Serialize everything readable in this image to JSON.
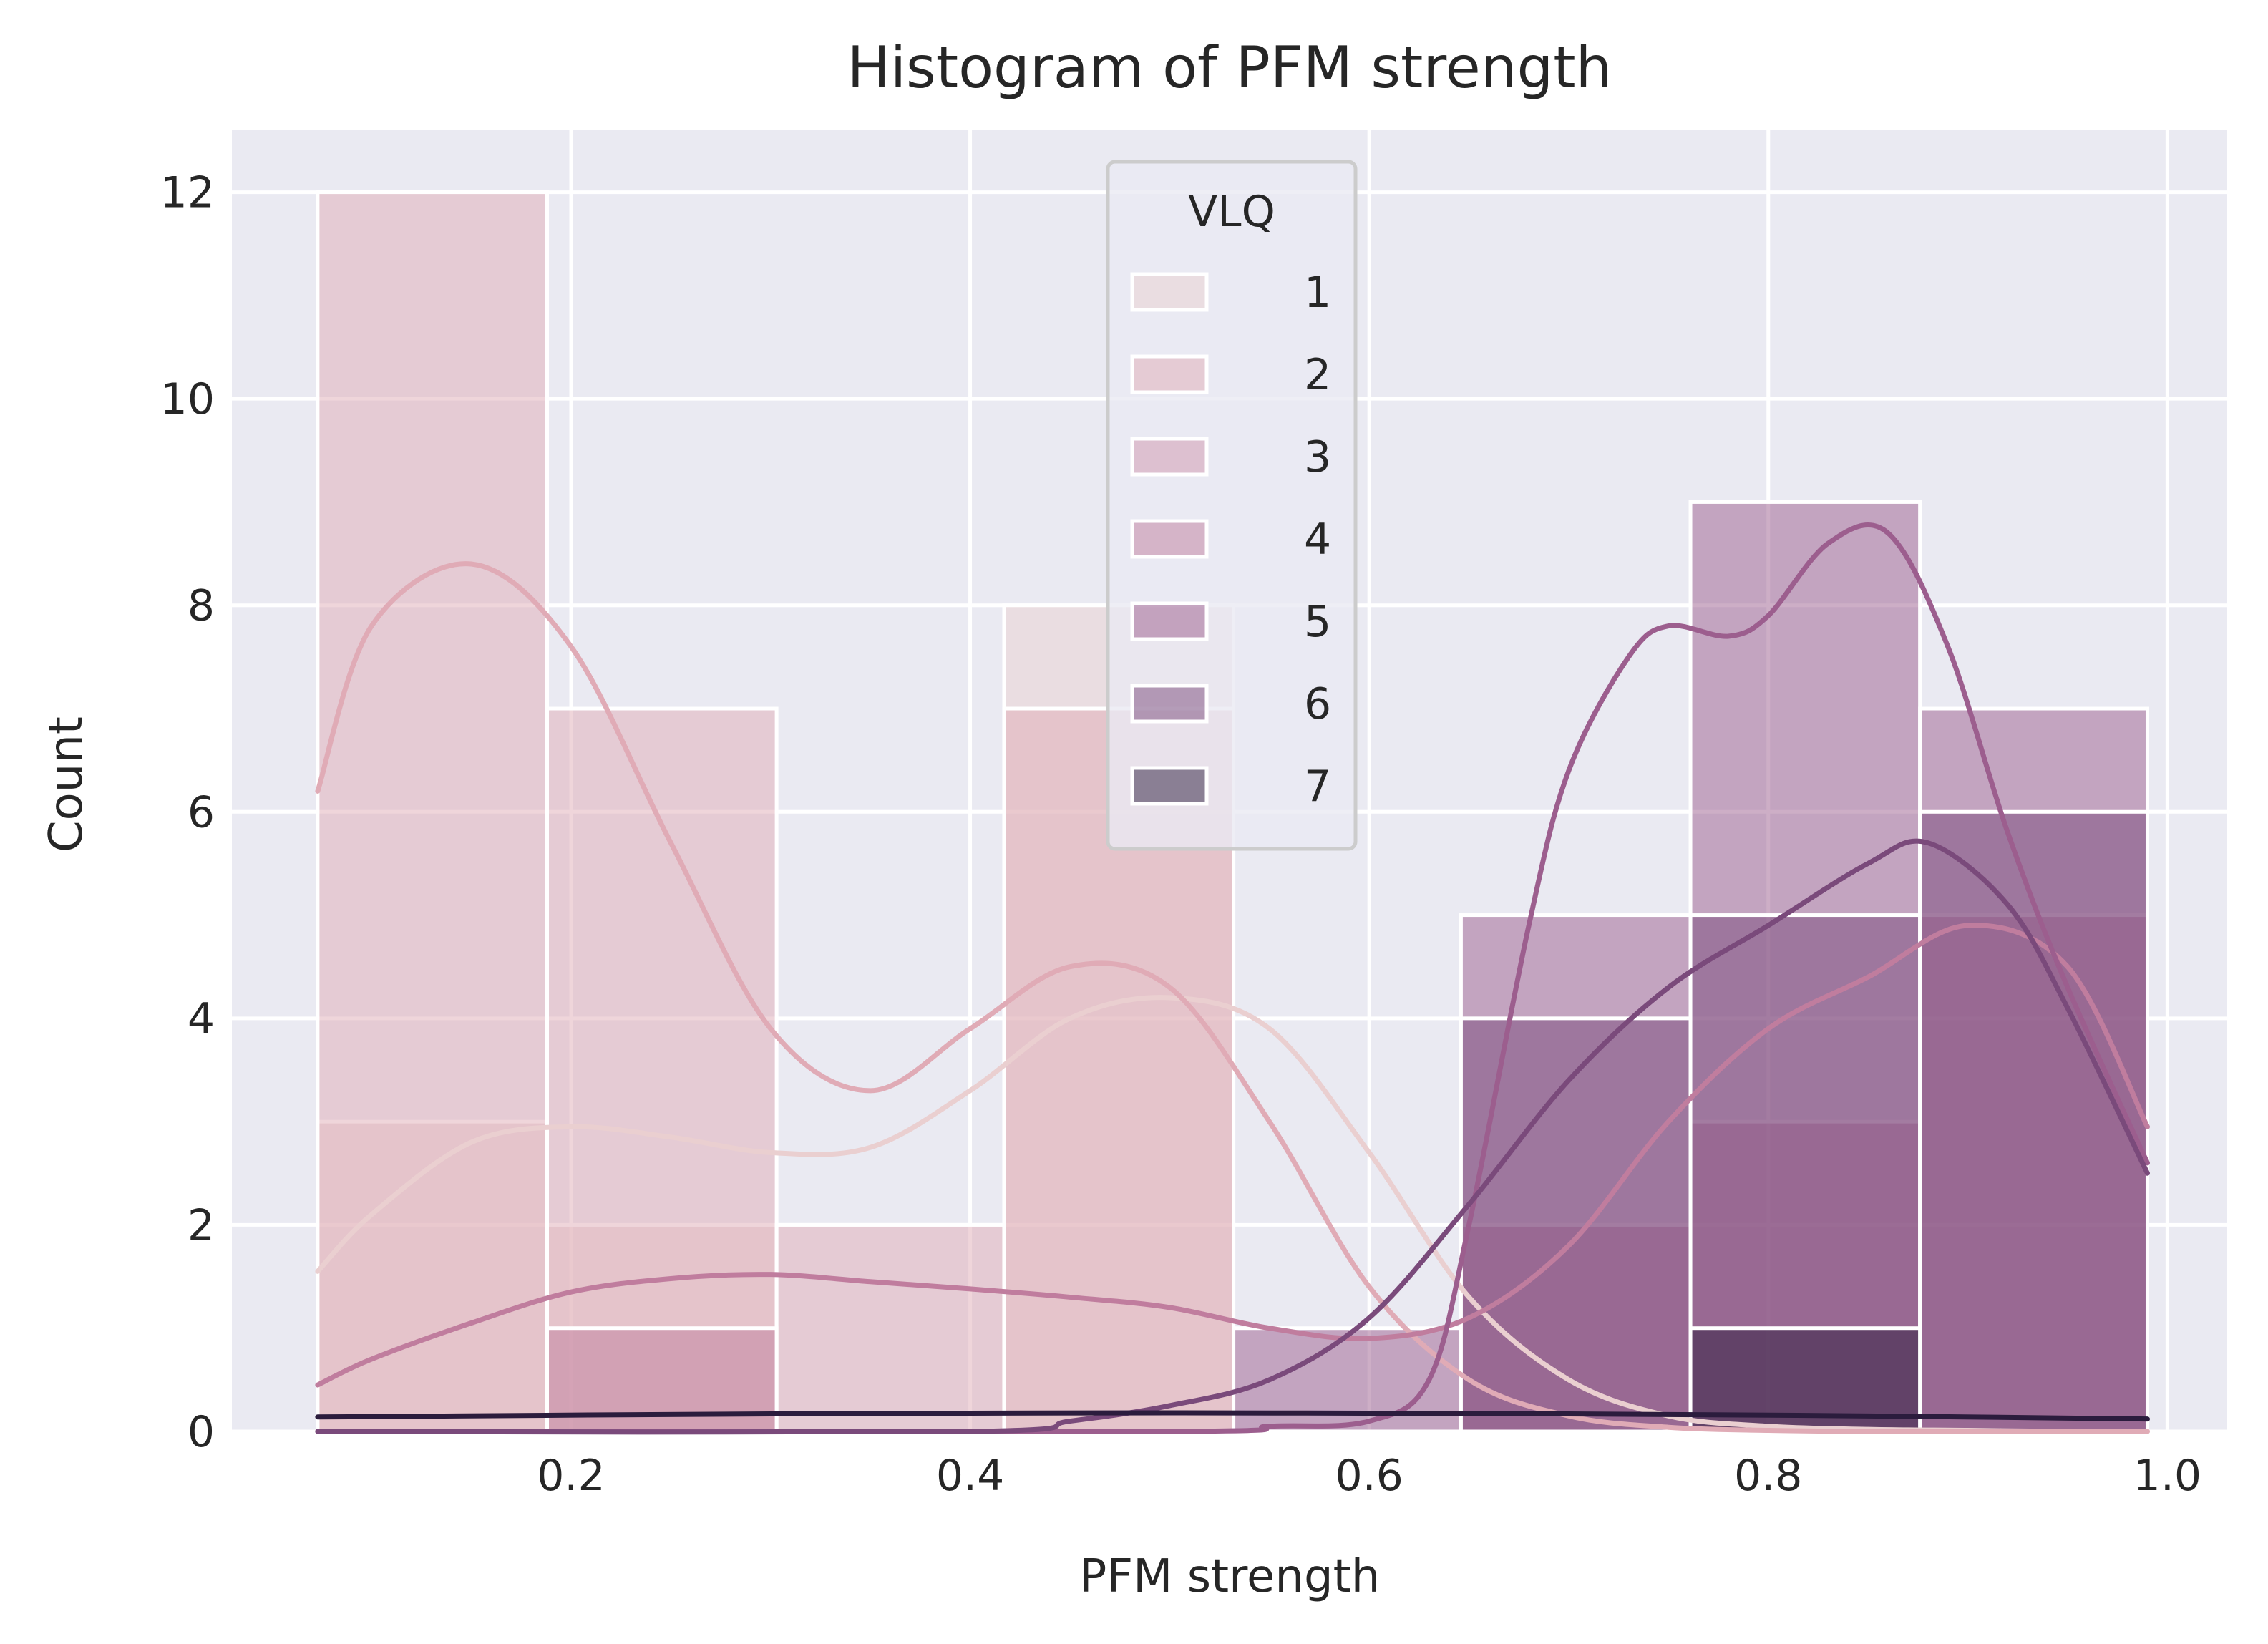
{
  "chart_data": {
    "type": "bar",
    "title": "Histogram of PFM strength",
    "xlabel": "PFM strength",
    "ylabel": "Count",
    "xlim": [
      0.03,
      1.03
    ],
    "ylim": [
      0,
      12.6
    ],
    "xticks": [
      0.2,
      0.4,
      0.6,
      0.8,
      1.0
    ],
    "xtick_labels": [
      "0.2",
      "0.4",
      "0.6",
      "0.8",
      "1.0"
    ],
    "yticks": [
      0,
      2,
      4,
      6,
      8,
      10,
      12
    ],
    "ytick_labels": [
      "0",
      "2",
      "4",
      "6",
      "8",
      "10",
      "12"
    ],
    "grid": true,
    "legend": {
      "title": "VLQ",
      "position": "top-center"
    },
    "bin_edges": [
      0.073,
      0.188,
      0.303,
      0.417,
      0.532,
      0.646,
      0.761,
      0.876,
      0.99
    ],
    "series": [
      {
        "name": "1",
        "color": "#eacfd0",
        "counts": [
          3,
          2,
          0,
          8,
          0,
          0,
          0,
          0
        ],
        "kde_x": [
          0.073,
          0.1,
          0.15,
          0.2,
          0.25,
          0.3,
          0.35,
          0.4,
          0.45,
          0.5,
          0.55,
          0.6,
          0.65,
          0.7,
          0.75,
          0.8,
          0.85,
          0.9,
          0.95,
          0.99
        ],
        "kde_y": [
          1.55,
          2.1,
          2.8,
          2.95,
          2.85,
          2.7,
          2.75,
          3.3,
          4.0,
          4.2,
          3.9,
          2.7,
          1.3,
          0.5,
          0.15,
          0.05,
          0.02,
          0.01,
          0.0,
          0.0
        ]
      },
      {
        "name": "2",
        "color": "#e0abb6",
        "counts": [
          12,
          7,
          2,
          7,
          0,
          0,
          0,
          0
        ],
        "kde_x": [
          0.073,
          0.1,
          0.15,
          0.2,
          0.25,
          0.3,
          0.35,
          0.4,
          0.45,
          0.5,
          0.55,
          0.6,
          0.65,
          0.7,
          0.75,
          0.8,
          0.85,
          0.9,
          0.95,
          0.99
        ],
        "kde_y": [
          6.2,
          7.8,
          8.4,
          7.6,
          5.7,
          3.9,
          3.3,
          3.9,
          4.5,
          4.3,
          3.0,
          1.4,
          0.5,
          0.15,
          0.04,
          0.01,
          0.0,
          0.0,
          0.0,
          0.0
        ]
      },
      {
        "name": "3",
        "color": "#cf95ad",
        "counts": [
          0,
          0,
          0,
          0,
          0,
          0,
          0,
          0
        ],
        "kde_x": [],
        "kde_y": []
      },
      {
        "name": "4",
        "color": "#c07d9e",
        "counts": [
          0,
          1,
          0,
          0,
          0,
          2,
          3,
          5
        ],
        "kde_x": [
          0.073,
          0.1,
          0.15,
          0.2,
          0.25,
          0.3,
          0.35,
          0.4,
          0.45,
          0.5,
          0.55,
          0.6,
          0.65,
          0.7,
          0.75,
          0.8,
          0.85,
          0.9,
          0.95,
          0.99
        ],
        "kde_y": [
          0.45,
          0.7,
          1.05,
          1.35,
          1.48,
          1.52,
          1.45,
          1.38,
          1.3,
          1.2,
          1.0,
          0.9,
          1.1,
          1.8,
          3.0,
          3.9,
          4.4,
          4.9,
          4.5,
          2.95
        ]
      },
      {
        "name": "5",
        "color": "#9c5e8e",
        "counts": [
          0,
          0,
          0,
          0,
          1,
          5,
          9,
          7
        ],
        "kde_x": [
          0.073,
          0.5,
          0.55,
          0.6,
          0.63,
          0.65,
          0.68,
          0.7,
          0.73,
          0.75,
          0.78,
          0.8,
          0.83,
          0.86,
          0.89,
          0.92,
          0.95,
          0.99
        ],
        "kde_y": [
          0.0,
          0.0,
          0.05,
          0.1,
          0.5,
          2.0,
          4.9,
          6.4,
          7.5,
          7.8,
          7.7,
          7.9,
          8.6,
          8.7,
          7.6,
          5.8,
          4.3,
          2.6
        ]
      },
      {
        "name": "6",
        "color": "#7a4a7b",
        "counts": [
          0,
          0,
          0,
          0,
          0,
          4,
          5,
          6
        ],
        "kde_x": [
          0.073,
          0.4,
          0.45,
          0.5,
          0.55,
          0.6,
          0.65,
          0.7,
          0.75,
          0.8,
          0.85,
          0.88,
          0.92,
          0.95,
          0.99
        ],
        "kde_y": [
          0.0,
          0.0,
          0.1,
          0.25,
          0.5,
          1.1,
          2.2,
          3.4,
          4.3,
          4.9,
          5.5,
          5.7,
          5.1,
          4.1,
          2.5
        ]
      },
      {
        "name": "7",
        "color": "#2b1c3d",
        "counts": [
          0,
          0,
          0,
          0,
          0,
          0,
          1,
          0
        ],
        "kde_x": [
          0.073,
          0.3,
          0.5,
          0.7,
          0.85,
          0.99
        ],
        "kde_y": [
          0.14,
          0.17,
          0.18,
          0.17,
          0.15,
          0.12
        ]
      }
    ]
  }
}
